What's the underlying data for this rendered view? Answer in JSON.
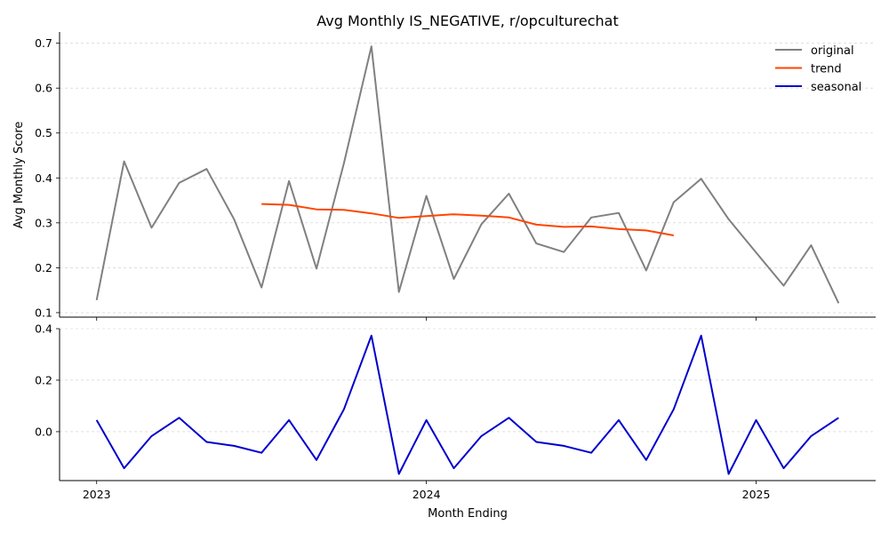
{
  "chart_data": [
    {
      "type": "line",
      "title": "Avg Monthly IS_NEGATIVE, r/opculturechat",
      "ylabel": "Avg Monthly Score",
      "xlabel": "",
      "ylim": [
        0.09,
        0.725
      ],
      "yticks": [
        0.1,
        0.2,
        0.3,
        0.4,
        0.5,
        0.6,
        0.7
      ],
      "grid": "horizontal-dashed",
      "legend": "top-right",
      "series": [
        {
          "name": "original",
          "color": "#808080",
          "x": [
            "2023-01",
            "2023-02",
            "2023-03",
            "2023-04",
            "2023-05",
            "2023-06",
            "2023-07",
            "2023-08",
            "2023-09",
            "2023-10",
            "2023-11",
            "2023-12",
            "2024-01",
            "2024-02",
            "2024-03",
            "2024-04",
            "2024-05",
            "2024-06",
            "2024-07",
            "2024-08",
            "2024-09",
            "2024-10",
            "2024-11",
            "2024-12",
            "2025-01",
            "2025-02",
            "2025-03",
            "2025-04"
          ],
          "values": [
            0.128,
            0.437,
            0.289,
            0.389,
            0.42,
            0.308,
            0.156,
            0.393,
            0.198,
            0.433,
            0.693,
            0.146,
            0.36,
            0.175,
            0.297,
            0.365,
            0.254,
            0.235,
            0.312,
            0.322,
            0.194,
            0.346,
            0.398,
            0.308,
            0.234,
            0.16,
            0.25,
            0.121
          ]
        },
        {
          "name": "trend",
          "color": "#ff4500",
          "x": [
            "2023-07",
            "2023-08",
            "2023-09",
            "2023-10",
            "2023-11",
            "2023-12",
            "2024-01",
            "2024-02",
            "2024-03",
            "2024-04",
            "2024-05",
            "2024-06",
            "2024-07",
            "2024-08",
            "2024-09",
            "2024-10"
          ],
          "values": [
            0.342,
            0.34,
            0.33,
            0.329,
            0.321,
            0.311,
            0.315,
            0.319,
            0.316,
            0.312,
            0.296,
            0.291,
            0.292,
            0.286,
            0.283,
            0.272
          ]
        }
      ]
    },
    {
      "type": "line",
      "title": "",
      "xlabel": "Month Ending",
      "ylabel": "",
      "ylim": [
        -0.19,
        0.4
      ],
      "yticks": [
        0.0,
        0.2,
        0.4
      ],
      "xticks": [
        {
          "x": "2023-01",
          "label": "2023"
        },
        {
          "x": "2024-01",
          "label": "2024"
        },
        {
          "x": "2025-01",
          "label": "2025"
        }
      ],
      "grid": "horizontal-dashed",
      "series": [
        {
          "name": "seasonal",
          "color": "#0000cd",
          "x": [
            "2023-01",
            "2023-02",
            "2023-03",
            "2023-04",
            "2023-05",
            "2023-06",
            "2023-07",
            "2023-08",
            "2023-09",
            "2023-10",
            "2023-11",
            "2023-12",
            "2024-01",
            "2024-02",
            "2024-03",
            "2024-04",
            "2024-05",
            "2024-06",
            "2024-07",
            "2024-08",
            "2024-09",
            "2024-10",
            "2024-11",
            "2024-12",
            "2025-01",
            "2025-02",
            "2025-03",
            "2025-04"
          ],
          "values": [
            0.045,
            -0.142,
            -0.017,
            0.054,
            -0.04,
            -0.055,
            -0.082,
            0.045,
            -0.11,
            0.087,
            0.373,
            -0.164,
            0.045,
            -0.142,
            -0.017,
            0.054,
            -0.04,
            -0.055,
            -0.082,
            0.045,
            -0.11,
            0.087,
            0.373,
            -0.164,
            0.045,
            -0.142,
            -0.017,
            0.054
          ]
        }
      ]
    }
  ]
}
